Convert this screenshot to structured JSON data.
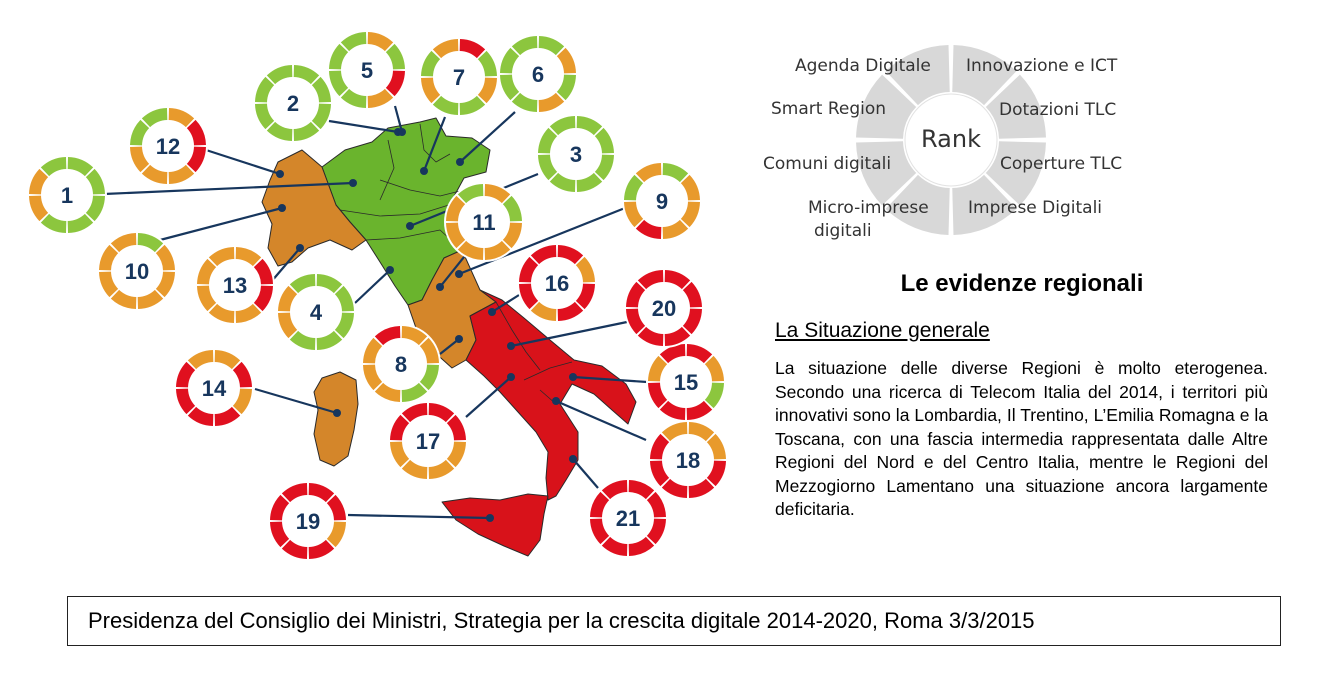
{
  "colors": {
    "green": "#8cc63e",
    "orange": "#e89a2c",
    "red": "#e0101f",
    "map_green": "#6ab42d",
    "map_orange": "#d4862a",
    "map_red": "#d8121a",
    "rank_ring": "#d8d8d8"
  },
  "rank_wheel": {
    "center": "Rank",
    "labels": [
      "Agenda Digitale",
      "Innovazione e ICT",
      "Smart Region",
      "Dotazioni TLC",
      "Comuni digitali",
      "Coperture TLC",
      "Micro-imprese",
      "digitali",
      "Imprese Digitali"
    ]
  },
  "heading": "Le evidenze regionali",
  "subheading": "La Situazione generale",
  "body_text": "La situazione delle diverse Regioni è molto eterogenea. Secondo una ricerca di Telecom Italia del 2014, i territori più innovativi sono la Lombardia, Il Trentino, L’Emilia Romagna e la Toscana, con una fascia intermedia rappresentata dalle Altre Regioni del Nord e del Centro Italia, mentre le Regioni del Mezzogiorno Lamentano una situazione ancora largamente deficitaria.",
  "footer": "Presidenza del Consiglio dei Ministri, Strategia per la crescita digitale 2014-2020, Roma 3/3/2015",
  "regions": [
    {
      "rank": "1",
      "ring": [
        "green",
        "green",
        "green",
        "green",
        "green",
        "orange",
        "orange",
        "green"
      ]
    },
    {
      "rank": "2",
      "ring": [
        "green",
        "green",
        "green",
        "green",
        "green",
        "green",
        "green",
        "green"
      ]
    },
    {
      "rank": "3",
      "ring": [
        "green",
        "green",
        "green",
        "green",
        "green",
        "green",
        "green",
        "green"
      ]
    },
    {
      "rank": "4",
      "ring": [
        "green",
        "green",
        "green",
        "green",
        "green",
        "orange",
        "orange",
        "green"
      ]
    },
    {
      "rank": "5",
      "ring": [
        "orange",
        "green",
        "red",
        "orange",
        "green",
        "green",
        "green",
        "green"
      ]
    },
    {
      "rank": "6",
      "ring": [
        "green",
        "orange",
        "green",
        "orange",
        "green",
        "green",
        "green",
        "green"
      ]
    },
    {
      "rank": "7",
      "ring": [
        "red",
        "green",
        "orange",
        "green",
        "green",
        "orange",
        "green",
        "orange"
      ]
    },
    {
      "rank": "8",
      "ring": [
        "orange",
        "orange",
        "green",
        "green",
        "orange",
        "orange",
        "orange",
        "red"
      ]
    },
    {
      "rank": "9",
      "ring": [
        "green",
        "orange",
        "orange",
        "orange",
        "red",
        "orange",
        "green",
        "orange"
      ]
    },
    {
      "rank": "10",
      "ring": [
        "green",
        "orange",
        "orange",
        "orange",
        "orange",
        "orange",
        "orange",
        "orange"
      ]
    },
    {
      "rank": "11",
      "ring": [
        "orange",
        "green",
        "orange",
        "orange",
        "orange",
        "orange",
        "orange",
        "green"
      ]
    },
    {
      "rank": "12",
      "ring": [
        "orange",
        "red",
        "red",
        "orange",
        "orange",
        "orange",
        "green",
        "green"
      ]
    },
    {
      "rank": "13",
      "ring": [
        "orange",
        "red",
        "red",
        "orange",
        "orange",
        "orange",
        "orange",
        "orange"
      ]
    },
    {
      "rank": "14",
      "ring": [
        "orange",
        "red",
        "orange",
        "red",
        "red",
        "red",
        "red",
        "orange"
      ]
    },
    {
      "rank": "15",
      "ring": [
        "red",
        "orange",
        "green",
        "red",
        "red",
        "red",
        "orange",
        "red"
      ]
    },
    {
      "rank": "16",
      "ring": [
        "red",
        "orange",
        "red",
        "red",
        "orange",
        "red",
        "red",
        "red"
      ]
    },
    {
      "rank": "17",
      "ring": [
        "red",
        "red",
        "orange",
        "orange",
        "orange",
        "orange",
        "red",
        "red"
      ]
    },
    {
      "rank": "18",
      "ring": [
        "orange",
        "orange",
        "red",
        "red",
        "red",
        "red",
        "red",
        "orange"
      ]
    },
    {
      "rank": "19",
      "ring": [
        "red",
        "red",
        "orange",
        "red",
        "red",
        "red",
        "red",
        "red"
      ]
    },
    {
      "rank": "20",
      "ring": [
        "red",
        "red",
        "red",
        "red",
        "red",
        "red",
        "red",
        "red"
      ]
    },
    {
      "rank": "21",
      "ring": [
        "red",
        "red",
        "red",
        "red",
        "red",
        "red",
        "red",
        "red"
      ]
    }
  ]
}
